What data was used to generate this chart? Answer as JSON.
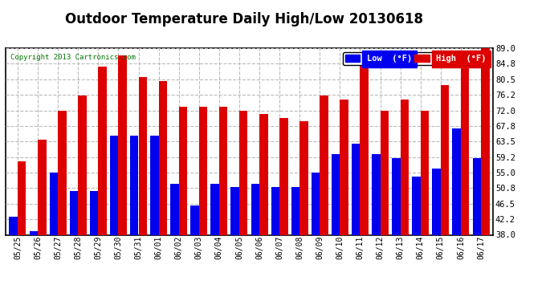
{
  "title": "Outdoor Temperature Daily High/Low 20130618",
  "copyright": "Copyright 2013 Cartronics.com",
  "legend_low": "Low  (°F)",
  "legend_high": "High  (°F)",
  "dates": [
    "05/25",
    "05/26",
    "05/27",
    "05/28",
    "05/29",
    "05/30",
    "05/31",
    "06/01",
    "06/02",
    "06/03",
    "06/04",
    "06/05",
    "06/06",
    "06/07",
    "06/08",
    "06/09",
    "06/10",
    "06/11",
    "06/12",
    "06/13",
    "06/14",
    "06/15",
    "06/16",
    "06/17"
  ],
  "lows": [
    43,
    39,
    55,
    50,
    50,
    65,
    65,
    65,
    52,
    46,
    52,
    51,
    52,
    51,
    51,
    55,
    60,
    63,
    60,
    59,
    54,
    56,
    67,
    59
  ],
  "highs": [
    58,
    64,
    72,
    76,
    84,
    87,
    81,
    80,
    73,
    73,
    73,
    72,
    71,
    70,
    69,
    76,
    75,
    86,
    72,
    75,
    72,
    79,
    86,
    89
  ],
  "low_color": "#0000ee",
  "high_color": "#dd0000",
  "bg_color": "#ffffff",
  "ylim_min": 38.0,
  "ylim_max": 89.0,
  "yticks": [
    38.0,
    42.2,
    46.5,
    50.8,
    55.0,
    59.2,
    63.5,
    67.8,
    72.0,
    76.2,
    80.5,
    84.8,
    89.0
  ],
  "grid_color": "#bbbbbb",
  "title_fontsize": 12,
  "bar_width": 0.42
}
